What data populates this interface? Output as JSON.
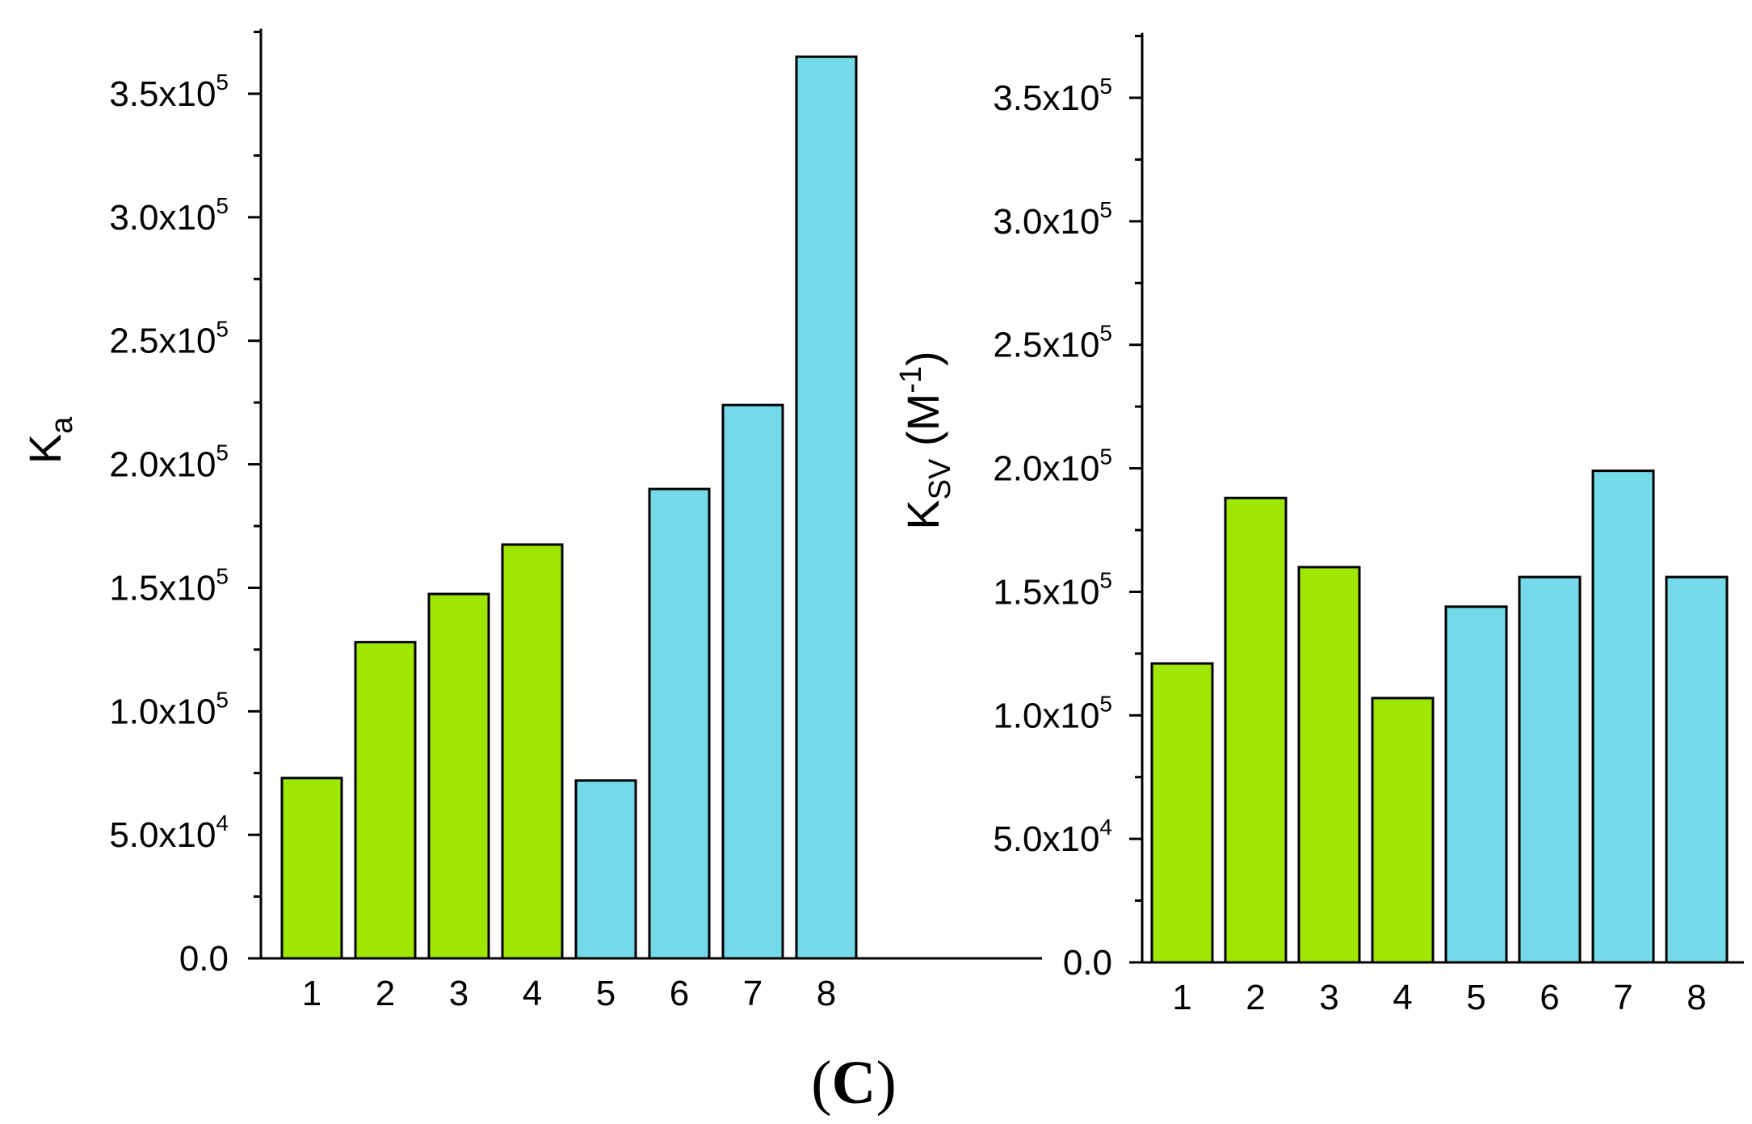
{
  "colors": {
    "green": "#9fe600",
    "cyan": "#74d9e9",
    "axis": "#000000"
  },
  "caption": {
    "open": "(",
    "letter": "C",
    "close": ")"
  },
  "chart_data": [
    {
      "type": "bar",
      "ylabel": {
        "main": "K",
        "sub": "a",
        "rest": ""
      },
      "xlabel": "",
      "categories": [
        "1",
        "2",
        "3",
        "4",
        "5",
        "6",
        "7",
        "8"
      ],
      "values": [
        73000,
        128000,
        147500,
        167500,
        72000,
        190000,
        224000,
        365000
      ],
      "bar_colors": [
        "green",
        "green",
        "green",
        "green",
        "cyan",
        "cyan",
        "cyan",
        "cyan"
      ],
      "ylim": [
        0,
        375000
      ],
      "yticks": [
        {
          "mant": "0.0",
          "exp": ""
        },
        {
          "mant": "5.0x10",
          "exp": "4"
        },
        {
          "mant": "1.0x10",
          "exp": "5"
        },
        {
          "mant": "1.5x10",
          "exp": "5"
        },
        {
          "mant": "2.0x10",
          "exp": "5"
        },
        {
          "mant": "2.5x10",
          "exp": "5"
        },
        {
          "mant": "3.0x10",
          "exp": "5"
        },
        {
          "mant": "3.5x10",
          "exp": "5"
        }
      ],
      "ytick_values": [
        0,
        50000,
        100000,
        150000,
        200000,
        250000,
        300000,
        350000
      ],
      "grid": false,
      "legend": "none"
    },
    {
      "type": "bar",
      "ylabel": {
        "main": "K",
        "sub": "SV",
        "rest": " (M",
        "sup": "-1",
        "close": ")"
      },
      "xlabel": "",
      "categories": [
        "1",
        "2",
        "3",
        "4",
        "5",
        "6",
        "7",
        "8"
      ],
      "values": [
        121000,
        188000,
        160000,
        107000,
        144000,
        156000,
        199000,
        156000
      ],
      "bar_colors": [
        "green",
        "green",
        "green",
        "green",
        "cyan",
        "cyan",
        "cyan",
        "cyan"
      ],
      "ylim": [
        0,
        375000
      ],
      "yticks": [
        {
          "mant": "0.0",
          "exp": ""
        },
        {
          "mant": "5.0x10",
          "exp": "4"
        },
        {
          "mant": "1.0x10",
          "exp": "5"
        },
        {
          "mant": "1.5x10",
          "exp": "5"
        },
        {
          "mant": "2.0x10",
          "exp": "5"
        },
        {
          "mant": "2.5x10",
          "exp": "5"
        },
        {
          "mant": "3.0x10",
          "exp": "5"
        },
        {
          "mant": "3.5x10",
          "exp": "5"
        }
      ],
      "ytick_values": [
        0,
        50000,
        100000,
        150000,
        200000,
        250000,
        300000,
        350000
      ],
      "grid": false,
      "legend": "none"
    }
  ]
}
